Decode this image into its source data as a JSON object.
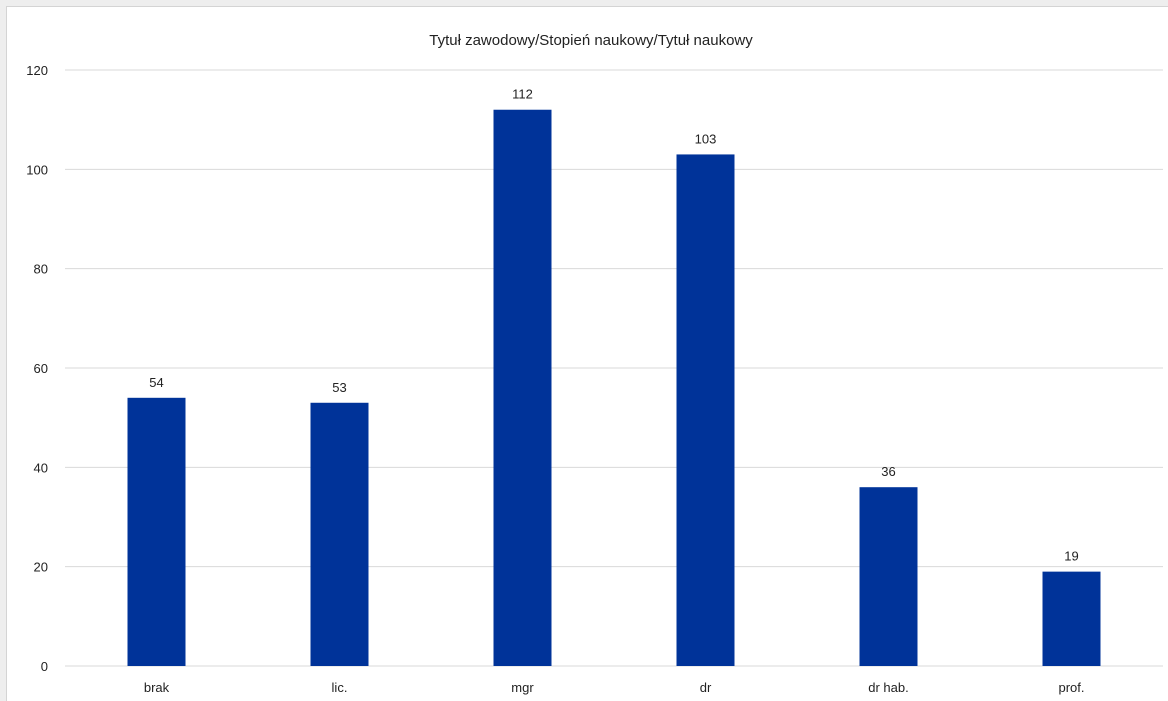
{
  "chart_data": {
    "type": "bar",
    "title": "Tytuł zawodowy/Stopień naukowy/Tytuł naukowy",
    "categories": [
      "brak",
      "lic.",
      "mgr",
      "dr",
      "dr hab.",
      "prof."
    ],
    "values": [
      54,
      53,
      112,
      103,
      36,
      19
    ],
    "data_labels": [
      "54",
      "53",
      "112",
      "103",
      "36",
      "19"
    ],
    "y_ticks": [
      0,
      20,
      40,
      60,
      80,
      100,
      120
    ],
    "ylim": [
      0,
      120
    ],
    "xlabel": "",
    "ylabel": "",
    "grid": true,
    "legend": "none",
    "bar_color": "#003399"
  }
}
